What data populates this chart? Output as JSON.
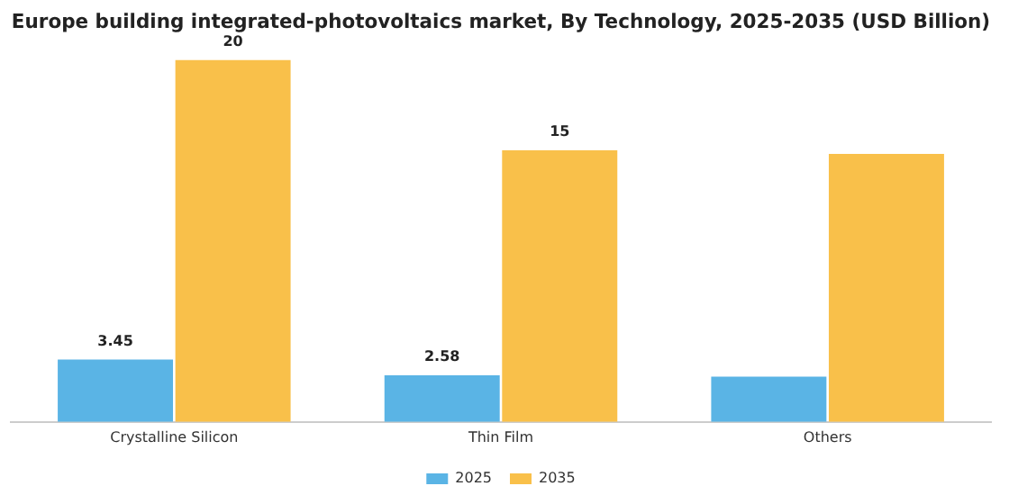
{
  "chart_data": {
    "type": "bar",
    "title": "Europe building integrated-photovoltaics market, By Technology, 2025-2035 (USD Billion)",
    "categories": [
      "Crystalline Silicon",
      "Thin Film",
      "Others"
    ],
    "series": [
      {
        "name": "2025",
        "color": "#5ab4e5",
        "values": [
          3.45,
          2.58,
          2.5
        ],
        "value_labels": [
          "3.45",
          "2.58",
          null
        ]
      },
      {
        "name": "2035",
        "color": "#f9c04a",
        "values": [
          20,
          15,
          14.8
        ],
        "value_labels": [
          "20",
          "15",
          null
        ]
      }
    ],
    "legend": "bottom",
    "grid": false
  }
}
